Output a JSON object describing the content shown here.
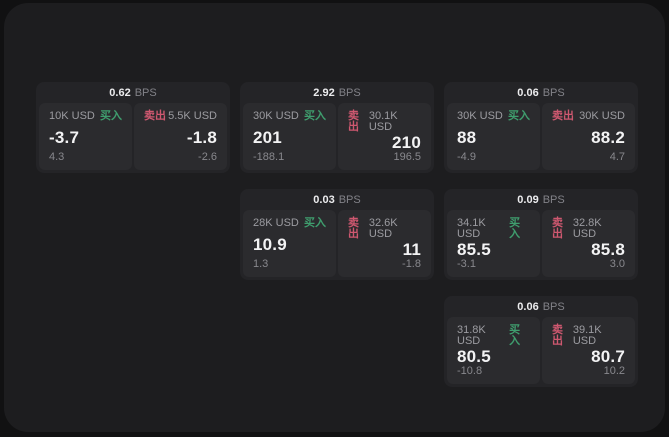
{
  "labels": {
    "buy": "买入",
    "sell": "卖出",
    "bps": "BPS"
  },
  "colors": {
    "background": "#111112",
    "panel": "#1d1d1f",
    "card": "#242427",
    "subpanel": "#2b2b2e",
    "buy_green": "#3f9e6e",
    "sell_red": "#cf5870"
  },
  "cards": [
    {
      "bps": "0.62",
      "row": 1,
      "col": 1,
      "buy": {
        "size": "10K USD",
        "value": "-3.7",
        "sub": "4.3"
      },
      "sell": {
        "size": "5.5K USD",
        "value": "-1.8",
        "sub": "-2.6"
      }
    },
    {
      "bps": "2.92",
      "row": 1,
      "col": 2,
      "buy": {
        "size": "30K USD",
        "value": "201",
        "sub": "-188.1"
      },
      "sell": {
        "size": "30.1K USD",
        "value": "210",
        "sub": "196.5"
      }
    },
    {
      "bps": "0.06",
      "row": 1,
      "col": 3,
      "buy": {
        "size": "30K USD",
        "value": "88",
        "sub": "-4.9"
      },
      "sell": {
        "size": "30K USD",
        "value": "88.2",
        "sub": "4.7"
      }
    },
    {
      "bps": "0.03",
      "row": 2,
      "col": 2,
      "buy": {
        "size": "28K USD",
        "value": "10.9",
        "sub": "1.3"
      },
      "sell": {
        "size": "32.6K USD",
        "value": "11",
        "sub": "-1.8"
      }
    },
    {
      "bps": "0.09",
      "row": 2,
      "col": 3,
      "buy": {
        "size": "34.1K USD",
        "value": "85.5",
        "sub": "-3.1"
      },
      "sell": {
        "size": "32.8K USD",
        "value": "85.8",
        "sub": "3.0"
      }
    },
    {
      "bps": "0.06",
      "row": 3,
      "col": 3,
      "buy": {
        "size": "31.8K USD",
        "value": "80.5",
        "sub": "-10.8"
      },
      "sell": {
        "size": "39.1K USD",
        "value": "80.7",
        "sub": "10.2"
      }
    }
  ]
}
